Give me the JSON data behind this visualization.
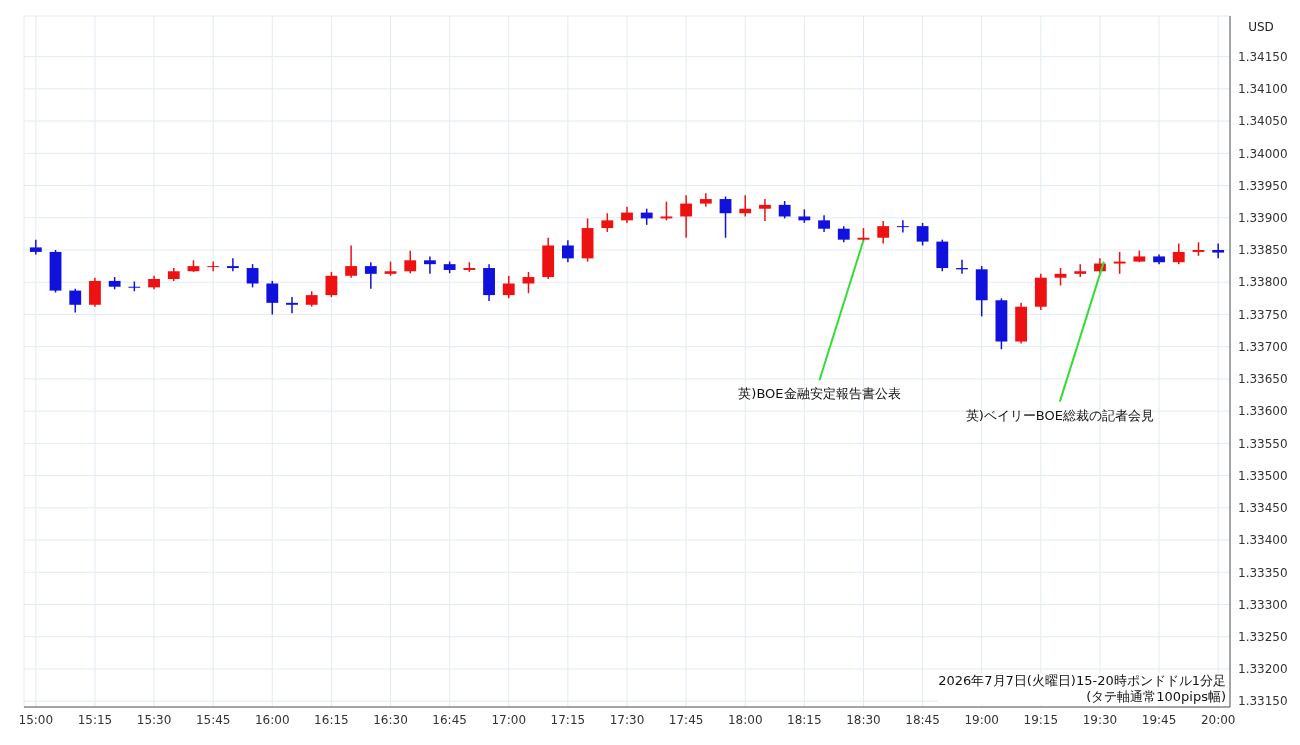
{
  "chart_data": {
    "type": "candlestick",
    "ylabel": "USD",
    "x": [
      "2026-07-07T15:00",
      "2026-07-07T15:05",
      "2026-07-07T15:10",
      "2026-07-07T15:15",
      "2026-07-07T15:20",
      "2026-07-07T15:25",
      "2026-07-07T15:30",
      "2026-07-07T15:35",
      "2026-07-07T15:40",
      "2026-07-07T15:45",
      "2026-07-07T15:50",
      "2026-07-07T15:55",
      "2026-07-07T16:00",
      "2026-07-07T16:05",
      "2026-07-07T16:10",
      "2026-07-07T16:15",
      "2026-07-07T16:20",
      "2026-07-07T16:25",
      "2026-07-07T16:30",
      "2026-07-07T16:35",
      "2026-07-07T16:40",
      "2026-07-07T16:45",
      "2026-07-07T16:50",
      "2026-07-07T16:55",
      "2026-07-07T17:00",
      "2026-07-07T17:05",
      "2026-07-07T17:10",
      "2026-07-07T17:15",
      "2026-07-07T17:20",
      "2026-07-07T17:25",
      "2026-07-07T17:30",
      "2026-07-07T17:35",
      "2026-07-07T17:40",
      "2026-07-07T17:45",
      "2026-07-07T17:50",
      "2026-07-07T17:55",
      "2026-07-07T18:00",
      "2026-07-07T18:05",
      "2026-07-07T18:10",
      "2026-07-07T18:15",
      "2026-07-07T18:20",
      "2026-07-07T18:25",
      "2026-07-07T18:30",
      "2026-07-07T18:35",
      "2026-07-07T18:40",
      "2026-07-07T18:45",
      "2026-07-07T18:50",
      "2026-07-07T18:55",
      "2026-07-07T19:00",
      "2026-07-07T19:05",
      "2026-07-07T19:10",
      "2026-07-07T19:15",
      "2026-07-07T19:20",
      "2026-07-07T19:25",
      "2026-07-07T19:30",
      "2026-07-07T19:35",
      "2026-07-07T19:40",
      "2026-07-07T19:45",
      "2026-07-07T19:50",
      "2026-07-07T19:55",
      "2026-07-07T20:00"
    ],
    "ohlc": [
      [
        1.33854,
        1.33866,
        1.33843,
        1.33847
      ],
      [
        1.33847,
        1.3385,
        1.33784,
        1.33787
      ],
      [
        1.33787,
        1.3379,
        1.33753,
        1.33765
      ],
      [
        1.33765,
        1.33807,
        1.33762,
        1.33802
      ],
      [
        1.33802,
        1.33808,
        1.33789,
        1.33793
      ],
      [
        1.33793,
        1.33801,
        1.33786,
        1.33792
      ],
      [
        1.33792,
        1.3381,
        1.33789,
        1.33805
      ],
      [
        1.33805,
        1.33822,
        1.33802,
        1.33817
      ],
      [
        1.33817,
        1.33834,
        1.33816,
        1.33825
      ],
      [
        1.33825,
        1.33832,
        1.33817,
        1.33825
      ],
      [
        1.33825,
        1.33837,
        1.33817,
        1.33822
      ],
      [
        1.33822,
        1.33828,
        1.33792,
        1.33798
      ],
      [
        1.33798,
        1.33802,
        1.3375,
        1.33768
      ],
      [
        1.33768,
        1.33777,
        1.33752,
        1.33765
      ],
      [
        1.33765,
        1.33786,
        1.33762,
        1.3378
      ],
      [
        1.3378,
        1.33816,
        1.33777,
        1.3381
      ],
      [
        1.3381,
        1.33857,
        1.33807,
        1.33825
      ],
      [
        1.33825,
        1.33831,
        1.3379,
        1.33813
      ],
      [
        1.33813,
        1.33832,
        1.3381,
        1.33817
      ],
      [
        1.33817,
        1.33849,
        1.33814,
        1.33834
      ],
      [
        1.33834,
        1.3384,
        1.33813,
        1.33828
      ],
      [
        1.33828,
        1.33832,
        1.33814,
        1.33819
      ],
      [
        1.33819,
        1.33831,
        1.33816,
        1.33822
      ],
      [
        1.33822,
        1.33828,
        1.33771,
        1.3378
      ],
      [
        1.3378,
        1.3381,
        1.33775,
        1.33798
      ],
      [
        1.33798,
        1.33816,
        1.33783,
        1.33808
      ],
      [
        1.33808,
        1.33869,
        1.33805,
        1.33857
      ],
      [
        1.33857,
        1.33865,
        1.33831,
        1.33837
      ],
      [
        1.33837,
        1.33899,
        1.33832,
        1.33884
      ],
      [
        1.33884,
        1.33907,
        1.33878,
        1.33896
      ],
      [
        1.33896,
        1.33917,
        1.33892,
        1.33908
      ],
      [
        1.33908,
        1.33914,
        1.33889,
        1.33899
      ],
      [
        1.33899,
        1.33925,
        1.33896,
        1.33902
      ],
      [
        1.33902,
        1.33935,
        1.33869,
        1.33922
      ],
      [
        1.33922,
        1.33938,
        1.33917,
        1.33929
      ],
      [
        1.33929,
        1.33933,
        1.33869,
        1.33907
      ],
      [
        1.33907,
        1.33935,
        1.33902,
        1.33914
      ],
      [
        1.33914,
        1.33929,
        1.33895,
        1.3392
      ],
      [
        1.3392,
        1.33926,
        1.33899,
        1.33902
      ],
      [
        1.33902,
        1.33913,
        1.33892,
        1.33896
      ],
      [
        1.33896,
        1.33904,
        1.33878,
        1.33883
      ],
      [
        1.33883,
        1.33887,
        1.33862,
        1.33866
      ],
      [
        1.33866,
        1.33884,
        1.33863,
        1.33869
      ],
      [
        1.33869,
        1.33895,
        1.3386,
        1.33887
      ],
      [
        1.33887,
        1.33896,
        1.33877,
        1.33887
      ],
      [
        1.33887,
        1.33892,
        1.33857,
        1.33863
      ],
      [
        1.33863,
        1.33866,
        1.33817,
        1.33822
      ],
      [
        1.33822,
        1.33835,
        1.33813,
        1.3382
      ],
      [
        1.3382,
        1.33825,
        1.33747,
        1.33772
      ],
      [
        1.33772,
        1.33775,
        1.33696,
        1.33708
      ],
      [
        1.33708,
        1.33768,
        1.33705,
        1.33762
      ],
      [
        1.33762,
        1.33813,
        1.33757,
        1.33807
      ],
      [
        1.33807,
        1.33822,
        1.33795,
        1.33813
      ],
      [
        1.33813,
        1.33828,
        1.33808,
        1.33817
      ],
      [
        1.33817,
        1.33837,
        1.33814,
        1.33829
      ],
      [
        1.33829,
        1.33847,
        1.33813,
        1.33832
      ],
      [
        1.33832,
        1.33849,
        1.33831,
        1.3384
      ],
      [
        1.3384,
        1.33843,
        1.33828,
        1.33831
      ],
      [
        1.33831,
        1.3386,
        1.33828,
        1.33847
      ],
      [
        1.33847,
        1.33862,
        1.33841,
        1.3385
      ],
      [
        1.3385,
        1.3386,
        1.33837,
        1.33846
      ]
    ],
    "colors": [
      "#1111dd",
      "#1111dd",
      "#1111dd",
      "#ee1111",
      "#1111dd",
      "#1111dd",
      "#ee1111",
      "#ee1111",
      "#ee1111",
      "#ee1111",
      "#1111dd",
      "#1111dd",
      "#1111dd",
      "#1111dd",
      "#ee1111",
      "#ee1111",
      "#ee1111",
      "#1111dd",
      "#ee1111",
      "#ee1111",
      "#1111dd",
      "#1111dd",
      "#ee1111",
      "#1111dd",
      "#ee1111",
      "#ee1111",
      "#ee1111",
      "#1111dd",
      "#ee1111",
      "#ee1111",
      "#ee1111",
      "#1111dd",
      "#ee1111",
      "#ee1111",
      "#ee1111",
      "#1111dd",
      "#ee1111",
      "#ee1111",
      "#1111dd",
      "#1111dd",
      "#1111dd",
      "#1111dd",
      "#ee1111",
      "#ee1111",
      "#1111dd",
      "#1111dd",
      "#1111dd",
      "#1111dd",
      "#1111dd",
      "#1111dd",
      "#ee1111",
      "#ee1111",
      "#ee1111",
      "#ee1111",
      "#ee1111",
      "#ee1111",
      "#ee1111",
      "#1111dd",
      "#ee1111",
      "#ee1111",
      "#1111dd"
    ],
    "xlim": [
      "2026-07-07T14:57",
      "2026-07-07T20:03"
    ],
    "xticks": [
      {
        "value": "2026-07-07T15:00",
        "label": "15:00"
      },
      {
        "value": "2026-07-07T15:15",
        "label": "15:15"
      },
      {
        "value": "2026-07-07T15:30",
        "label": "15:30"
      },
      {
        "value": "2026-07-07T15:45",
        "label": "15:45"
      },
      {
        "value": "2026-07-07T16:00",
        "label": "16:00"
      },
      {
        "value": "2026-07-07T16:15",
        "label": "16:15"
      },
      {
        "value": "2026-07-07T16:30",
        "label": "16:30"
      },
      {
        "value": "2026-07-07T16:45",
        "label": "16:45"
      },
      {
        "value": "2026-07-07T17:00",
        "label": "17:00"
      },
      {
        "value": "2026-07-07T17:15",
        "label": "17:15"
      },
      {
        "value": "2026-07-07T17:30",
        "label": "17:30"
      },
      {
        "value": "2026-07-07T17:45",
        "label": "17:45"
      },
      {
        "value": "2026-07-07T18:00",
        "label": "18:00"
      },
      {
        "value": "2026-07-07T18:15",
        "label": "18:15"
      },
      {
        "value": "2026-07-07T18:30",
        "label": "18:30"
      },
      {
        "value": "2026-07-07T18:45",
        "label": "18:45"
      },
      {
        "value": "2026-07-07T19:00",
        "label": "19:00"
      },
      {
        "value": "2026-07-07T19:15",
        "label": "19:15"
      },
      {
        "value": "2026-07-07T19:30",
        "label": "19:30"
      },
      {
        "value": "2026-07-07T19:45",
        "label": "19:45"
      },
      {
        "value": "2026-07-07T20:00",
        "label": "20:00"
      }
    ],
    "ylim": [
      1.33141,
      1.34213
    ],
    "yticks": [
      {
        "value": 1.3315,
        "label": "1.33150"
      },
      {
        "value": 1.332,
        "label": "1.33200"
      },
      {
        "value": 1.3325,
        "label": "1.33250"
      },
      {
        "value": 1.333,
        "label": "1.33300"
      },
      {
        "value": 1.3335,
        "label": "1.33350"
      },
      {
        "value": 1.334,
        "label": "1.33400"
      },
      {
        "value": 1.3345,
        "label": "1.33450"
      },
      {
        "value": 1.335,
        "label": "1.33500"
      },
      {
        "value": 1.3355,
        "label": "1.33550"
      },
      {
        "value": 1.336,
        "label": "1.33600"
      },
      {
        "value": 1.3365,
        "label": "1.33650"
      },
      {
        "value": 1.337,
        "label": "1.33700"
      },
      {
        "value": 1.3375,
        "label": "1.33750"
      },
      {
        "value": 1.338,
        "label": "1.33800"
      },
      {
        "value": 1.3385,
        "label": "1.33850"
      },
      {
        "value": 1.339,
        "label": "1.33900"
      },
      {
        "value": 1.3395,
        "label": "1.33950"
      },
      {
        "value": 1.34,
        "label": "1.34000"
      },
      {
        "value": 1.3405,
        "label": "1.34050"
      },
      {
        "value": 1.341,
        "label": "1.34100"
      },
      {
        "value": 1.3415,
        "label": "1.34150"
      }
    ],
    "grid": true,
    "annotations": [
      {
        "text": "英)BOE金融安定報告書公表",
        "x": "2026-07-07T18:30",
        "y": 1.33865
      },
      {
        "text": "英)ベイリーBOE総裁の記者会見",
        "x": "2026-07-07T19:31",
        "y": 1.33832
      },
      "2026年7月7日(火曜日)15-20時ポンドドル1分足",
      "(タテ軸通常100pips幅)"
    ]
  }
}
